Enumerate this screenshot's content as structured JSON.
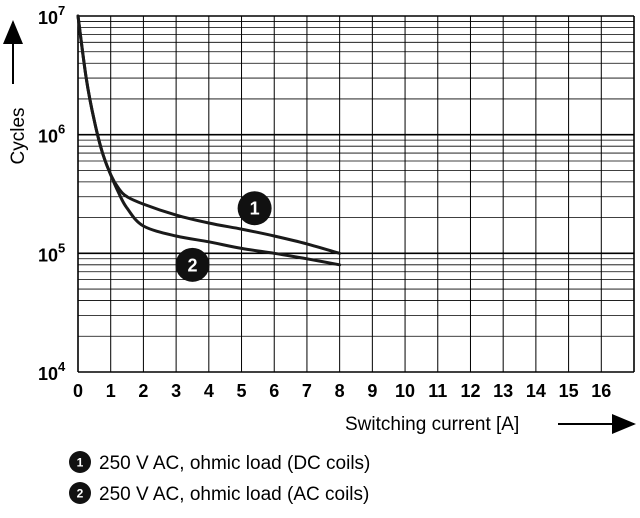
{
  "chart_data": {
    "type": "line",
    "xlabel": "Switching current [A]",
    "ylabel": "Cycles",
    "x_scale": "linear",
    "y_scale": "log",
    "xlim": [
      0,
      17
    ],
    "ylim": [
      10000,
      10000000
    ],
    "x_ticks": [
      "0",
      "1",
      "2",
      "3",
      "4",
      "5",
      "6",
      "7",
      "8",
      "9",
      "10",
      "11",
      "12",
      "13",
      "14",
      "15",
      "16"
    ],
    "y_ticks": [
      {
        "base": "10",
        "exp": "4",
        "value": 10000
      },
      {
        "base": "10",
        "exp": "5",
        "value": 100000
      },
      {
        "base": "10",
        "exp": "6",
        "value": 1000000
      },
      {
        "base": "10",
        "exp": "7",
        "value": 10000000
      }
    ],
    "grid": true,
    "series": [
      {
        "marker": "1",
        "legend": "250 V AC, ohmic load (DC coils)",
        "color": "#1a1a1a",
        "x": [
          0,
          0.25,
          0.5,
          0.75,
          1,
          1.25,
          1.5,
          2,
          3,
          4,
          5,
          6,
          7,
          8
        ],
        "y": [
          10000000,
          3000000,
          1300000,
          700000,
          460000,
          350000,
          300000,
          260000,
          210000,
          180000,
          160000,
          140000,
          120000,
          100000
        ]
      },
      {
        "marker": "2",
        "legend": "250 V AC, ohmic load (AC coils)",
        "color": "#1a1a1a",
        "x": [
          0,
          0.25,
          0.5,
          0.75,
          1,
          1.25,
          1.5,
          2,
          3,
          4,
          5,
          6,
          7,
          8
        ],
        "y": [
          10000000,
          3000000,
          1300000,
          700000,
          460000,
          320000,
          240000,
          170000,
          140000,
          125000,
          110000,
          100000,
          90000,
          80000
        ]
      }
    ],
    "markers": [
      {
        "label": "1",
        "series": 0,
        "x": 5.4,
        "y": 240000
      },
      {
        "label": "2",
        "series": 1,
        "x": 3.5,
        "y": 80000
      }
    ]
  }
}
